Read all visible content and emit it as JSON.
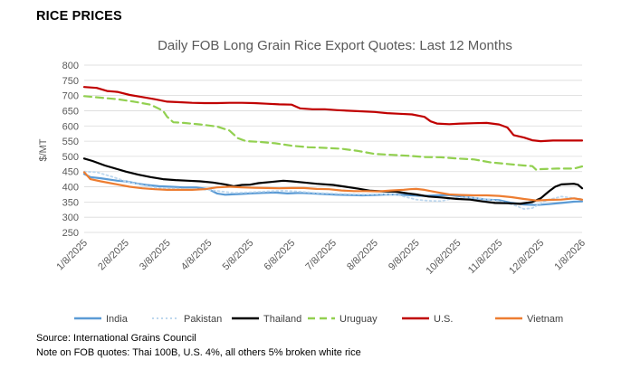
{
  "header": {
    "section_title": "RICE PRICES"
  },
  "notes": {
    "source": "Source: International Grains Council",
    "note": "Note on FOB quotes: Thai 100B, U.S. 4%, all others 5% broken white rice"
  },
  "colors": {
    "India": "#5b9bd5",
    "Pakistan": "#bdd7ee",
    "Thailand": "#000000",
    "Uruguay": "#92d050",
    "U.S.": "#c00000",
    "Vietnam": "#ed7d31",
    "gridline": "#d9d9d9"
  },
  "chart_data": {
    "type": "line",
    "title": "Daily FOB Long Grain Rice Export Quotes: Last 12 Months",
    "xlabel": "",
    "ylabel": "$/MT",
    "ylim": [
      250,
      800
    ],
    "yticks": [
      250,
      300,
      350,
      400,
      450,
      500,
      550,
      600,
      650,
      700,
      750,
      800
    ],
    "grid": true,
    "legend_position": "bottom",
    "x_tick_labels": [
      "1/8/2025",
      "2/8/2025",
      "3/8/2025",
      "4/8/2025",
      "5/8/2025",
      "6/8/2025",
      "7/8/2025",
      "8/8/2025",
      "9/8/2025",
      "10/8/2025",
      "11/8/2025",
      "12/8/2025",
      "1/8/2026"
    ],
    "x_unit": "months since 1/8/2025",
    "series": [
      {
        "name": "India",
        "style": "solid",
        "x": [
          0,
          0.15,
          0.4,
          0.8,
          1.0,
          1.3,
          1.5,
          1.8,
          2.1,
          2.4,
          2.7,
          3.0,
          3.2,
          3.4,
          3.7,
          4.0,
          4.3,
          4.6,
          4.9,
          5.2,
          5.5,
          5.8,
          6.1,
          6.4,
          6.7,
          7.0,
          7.3,
          7.6,
          7.9,
          8.2,
          8.5,
          8.8,
          9.1,
          9.4,
          9.7,
          10.0,
          10.3,
          10.6,
          10.9,
          11.2,
          11.5,
          11.8,
          12.0
        ],
        "values": [
          442,
          432,
          428,
          420,
          418,
          410,
          406,
          402,
          400,
          398,
          398,
          392,
          378,
          374,
          376,
          378,
          380,
          381,
          378,
          380,
          378,
          376,
          374,
          373,
          372,
          373,
          375,
          374,
          372,
          370,
          372,
          373,
          368,
          363,
          358,
          356,
          347,
          342,
          340,
          343,
          347,
          351,
          352
        ]
      },
      {
        "name": "Pakistan",
        "style": "dotted",
        "x": [
          0,
          0.3,
          0.7,
          1.0,
          1.4,
          1.8,
          2.1,
          2.4,
          2.7,
          3.0,
          3.3,
          3.6,
          4.0,
          4.4,
          4.8,
          5.2,
          5.6,
          6.0,
          6.4,
          6.8,
          7.2,
          7.6,
          8.0,
          8.3,
          8.6,
          8.9,
          9.2,
          9.5,
          9.8,
          10.1,
          10.4,
          10.6,
          10.8,
          11.0,
          11.2,
          11.5,
          11.8,
          12.0
        ],
        "values": [
          450,
          448,
          432,
          418,
          405,
          396,
          395,
          393,
          393,
          390,
          385,
          380,
          382,
          385,
          387,
          384,
          380,
          378,
          376,
          375,
          376,
          372,
          358,
          354,
          353,
          362,
          366,
          362,
          357,
          350,
          338,
          327,
          330,
          345,
          358,
          368,
          363,
          360
        ]
      },
      {
        "name": "Thailand",
        "style": "solid",
        "x": [
          0,
          0.2,
          0.5,
          0.8,
          1.0,
          1.3,
          1.6,
          1.9,
          2.2,
          2.5,
          2.8,
          3.1,
          3.4,
          3.6,
          3.8,
          4.0,
          4.2,
          4.5,
          4.8,
          5.0,
          5.3,
          5.6,
          6.0,
          6.3,
          6.6,
          6.9,
          7.2,
          7.5,
          7.8,
          8.0,
          8.3,
          8.6,
          9.0,
          9.3,
          9.6,
          9.9,
          10.2,
          10.5,
          10.8,
          11.0,
          11.2,
          11.35,
          11.5,
          11.8,
          11.9,
          12.0
        ],
        "values": [
          493,
          485,
          470,
          458,
          450,
          440,
          432,
          425,
          422,
          420,
          418,
          414,
          408,
          402,
          406,
          407,
          412,
          416,
          420,
          418,
          414,
          410,
          406,
          400,
          394,
          387,
          385,
          384,
          378,
          375,
          368,
          365,
          360,
          358,
          352,
          347,
          346,
          344,
          350,
          362,
          385,
          400,
          408,
          410,
          407,
          395
        ]
      },
      {
        "name": "Uruguay",
        "style": "dashed",
        "x": [
          0,
          0.4,
          0.8,
          1.2,
          1.6,
          1.9,
          2.0,
          2.15,
          2.4,
          2.8,
          3.2,
          3.5,
          3.7,
          3.9,
          4.2,
          4.6,
          5.0,
          5.4,
          5.8,
          6.2,
          6.6,
          7.0,
          7.4,
          7.8,
          8.2,
          8.6,
          9.0,
          9.4,
          9.8,
          10.2,
          10.6,
          10.8,
          10.9,
          11.0,
          11.4,
          11.8,
          12.0
        ],
        "values": [
          698,
          693,
          688,
          680,
          670,
          650,
          630,
          612,
          610,
          605,
          598,
          585,
          560,
          550,
          548,
          543,
          535,
          530,
          528,
          525,
          518,
          508,
          505,
          502,
          498,
          497,
          493,
          490,
          480,
          475,
          470,
          468,
          455,
          458,
          460,
          460,
          467
        ]
      },
      {
        "name": "U.S.",
        "style": "solid",
        "x": [
          0,
          0.3,
          0.55,
          0.8,
          1.1,
          1.4,
          1.7,
          2.0,
          2.3,
          2.6,
          2.9,
          3.2,
          3.5,
          3.8,
          4.1,
          4.4,
          4.7,
          5.0,
          5.2,
          5.5,
          5.8,
          6.1,
          6.4,
          6.7,
          7.0,
          7.3,
          7.6,
          7.9,
          8.2,
          8.35,
          8.5,
          8.8,
          9.1,
          9.4,
          9.7,
          10.0,
          10.2,
          10.35,
          10.6,
          10.8,
          11.0,
          11.3,
          11.6,
          12.0
        ],
        "values": [
          728,
          725,
          715,
          712,
          702,
          695,
          688,
          680,
          678,
          676,
          675,
          675,
          676,
          676,
          675,
          673,
          671,
          670,
          658,
          655,
          655,
          652,
          650,
          648,
          646,
          642,
          640,
          638,
          630,
          615,
          608,
          606,
          608,
          609,
          610,
          605,
          595,
          570,
          562,
          553,
          550,
          552,
          552,
          552
        ]
      },
      {
        "name": "Vietnam",
        "style": "solid",
        "x": [
          0,
          0.15,
          0.4,
          0.8,
          1.1,
          1.4,
          1.7,
          2.0,
          2.3,
          2.6,
          2.9,
          3.2,
          3.5,
          3.8,
          4.1,
          4.4,
          4.7,
          5.0,
          5.3,
          5.6,
          5.9,
          6.2,
          6.5,
          6.8,
          7.1,
          7.4,
          7.7,
          7.85,
          8.0,
          8.2,
          8.5,
          8.8,
          9.1,
          9.4,
          9.7,
          10.0,
          10.3,
          10.6,
          10.9,
          11.2,
          11.5,
          11.8,
          12.0
        ],
        "values": [
          448,
          425,
          418,
          408,
          400,
          395,
          392,
          390,
          390,
          390,
          392,
          398,
          400,
          398,
          397,
          396,
          395,
          396,
          396,
          393,
          392,
          388,
          386,
          386,
          385,
          388,
          390,
          392,
          393,
          390,
          382,
          375,
          373,
          372,
          372,
          370,
          366,
          360,
          355,
          357,
          358,
          362,
          358
        ]
      }
    ]
  }
}
